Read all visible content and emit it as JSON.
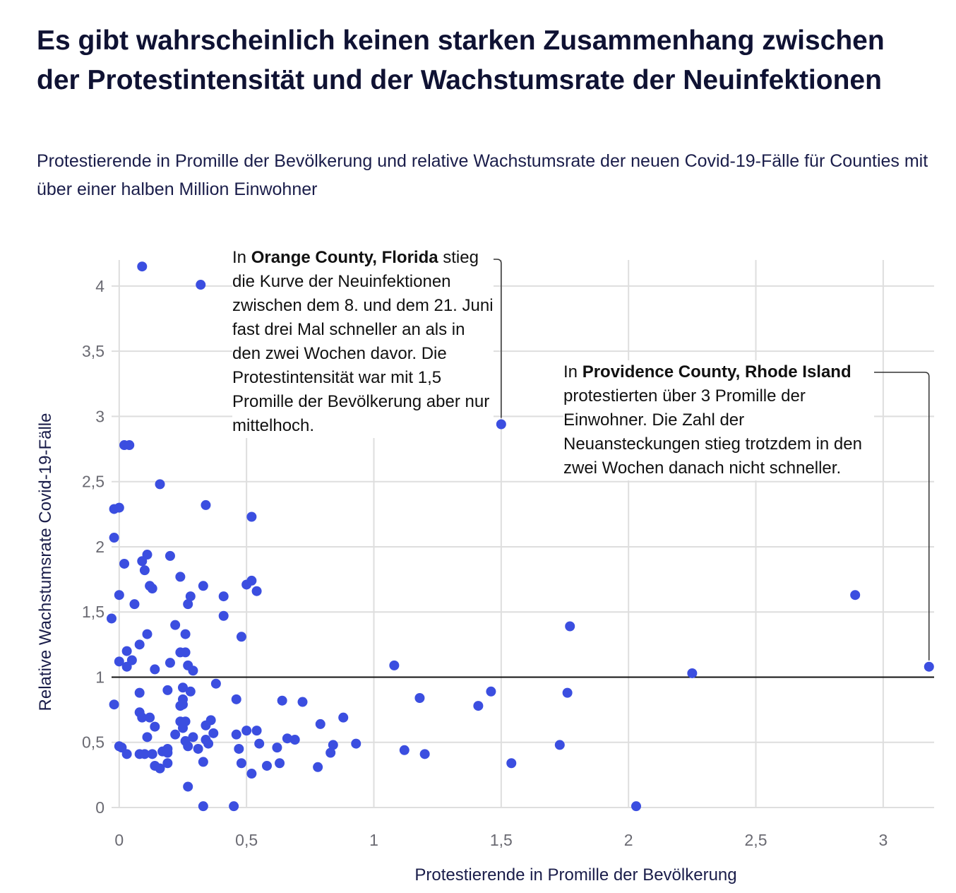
{
  "header": {
    "title": "Es gibt wahrscheinlich keinen starken Zusammenhang zwischen der Protestintensität und der Wachstumsrate der Neuinfektionen",
    "subtitle": "Protestierende in Promille der Bevölkerung und relative Wachstumsrate der neuen Covid-19-Fälle für Counties mit über einer halben Million Einwohner"
  },
  "annotations": {
    "orange": {
      "prefix": "In ",
      "bold": "Orange County, Florida",
      "text": "stieg die Kurve der Neuinfektionen zwischen dem 8. und dem 21. Juni fast drei Mal schneller an als in den zwei Wochen davor. Die Protestintensität war mit 1,5 Promille der Bevölkerung aber nur mittelhoch."
    },
    "providence": {
      "prefix": "In ",
      "bold": "Providence County, Rhode Island",
      "text": "protestierten über 3 Promille der Einwohner. Die Zahl der Neuansteckungen stieg trotzdem in den zwei Wochen danach nicht schneller."
    }
  },
  "colors": {
    "point": "#3b4ee0",
    "grid": "#dedede",
    "reference_line": "#111111",
    "text": "#0f1233"
  },
  "chart_data": {
    "type": "scatter",
    "xlabel": "Protestierende in Promille der Bevölkerung",
    "ylabel": "Relative Wachstumsrate Covid-19-Fälle",
    "xlim": [
      -0.03,
      3.2
    ],
    "ylim": [
      0,
      4.2
    ],
    "x_ticks": [
      0,
      0.5,
      1,
      1.5,
      2,
      2.5,
      3
    ],
    "x_tick_labels": [
      "0",
      "0,5",
      "1",
      "1,5",
      "2",
      "2,5",
      "3"
    ],
    "y_ticks": [
      0,
      0.5,
      1,
      1.5,
      2,
      2.5,
      3,
      3.5,
      4
    ],
    "y_tick_labels": [
      "0",
      "0,5",
      "1",
      "1,5",
      "2",
      "2,5",
      "3",
      "3,5",
      "4"
    ],
    "reference_line_y": 1,
    "grid": true,
    "points": [
      {
        "x": 0.09,
        "y": 4.15
      },
      {
        "x": 0.32,
        "y": 4.01
      },
      {
        "x": 1.5,
        "y": 2.94
      },
      {
        "x": 0.02,
        "y": 2.78
      },
      {
        "x": 0.04,
        "y": 2.78
      },
      {
        "x": 0.16,
        "y": 2.48
      },
      {
        "x": -0.02,
        "y": 2.29
      },
      {
        "x": 0.0,
        "y": 2.3
      },
      {
        "x": 0.34,
        "y": 2.32
      },
      {
        "x": 0.52,
        "y": 2.23
      },
      {
        "x": -0.02,
        "y": 2.07
      },
      {
        "x": 0.11,
        "y": 1.94
      },
      {
        "x": 0.2,
        "y": 1.93
      },
      {
        "x": 0.02,
        "y": 1.87
      },
      {
        "x": 0.09,
        "y": 1.89
      },
      {
        "x": 0.1,
        "y": 1.82
      },
      {
        "x": 0.24,
        "y": 1.77
      },
      {
        "x": 0.52,
        "y": 1.74
      },
      {
        "x": 0.5,
        "y": 1.71
      },
      {
        "x": 0.12,
        "y": 1.7
      },
      {
        "x": 0.13,
        "y": 1.68
      },
      {
        "x": 0.33,
        "y": 1.7
      },
      {
        "x": 0.54,
        "y": 1.66
      },
      {
        "x": 0.0,
        "y": 1.63
      },
      {
        "x": 0.28,
        "y": 1.62
      },
      {
        "x": 0.41,
        "y": 1.62
      },
      {
        "x": 0.06,
        "y": 1.56
      },
      {
        "x": 0.27,
        "y": 1.56
      },
      {
        "x": -0.03,
        "y": 1.45
      },
      {
        "x": 0.41,
        "y": 1.47
      },
      {
        "x": 0.22,
        "y": 1.4
      },
      {
        "x": 1.77,
        "y": 1.39
      },
      {
        "x": 2.89,
        "y": 1.63
      },
      {
        "x": 0.11,
        "y": 1.33
      },
      {
        "x": 0.26,
        "y": 1.33
      },
      {
        "x": 0.48,
        "y": 1.31
      },
      {
        "x": 0.08,
        "y": 1.25
      },
      {
        "x": 0.03,
        "y": 1.2
      },
      {
        "x": 0.24,
        "y": 1.19
      },
      {
        "x": 0.26,
        "y": 1.19
      },
      {
        "x": 0.0,
        "y": 1.12
      },
      {
        "x": 0.05,
        "y": 1.13
      },
      {
        "x": 0.2,
        "y": 1.11
      },
      {
        "x": 0.03,
        "y": 1.08
      },
      {
        "x": 0.14,
        "y": 1.06
      },
      {
        "x": 0.27,
        "y": 1.09
      },
      {
        "x": 0.29,
        "y": 1.05
      },
      {
        "x": 1.08,
        "y": 1.09
      },
      {
        "x": 3.18,
        "y": 1.08
      },
      {
        "x": 2.25,
        "y": 1.03
      },
      {
        "x": 0.38,
        "y": 0.95
      },
      {
        "x": 0.25,
        "y": 0.92
      },
      {
        "x": 0.19,
        "y": 0.9
      },
      {
        "x": 0.28,
        "y": 0.89
      },
      {
        "x": 0.08,
        "y": 0.88
      },
      {
        "x": 1.46,
        "y": 0.89
      },
      {
        "x": 1.76,
        "y": 0.88
      },
      {
        "x": 0.25,
        "y": 0.83
      },
      {
        "x": 0.46,
        "y": 0.83
      },
      {
        "x": 0.64,
        "y": 0.82
      },
      {
        "x": 0.72,
        "y": 0.81
      },
      {
        "x": 1.18,
        "y": 0.84
      },
      {
        "x": 1.41,
        "y": 0.78
      },
      {
        "x": -0.02,
        "y": 0.79
      },
      {
        "x": 0.24,
        "y": 0.78
      },
      {
        "x": 0.25,
        "y": 0.79
      },
      {
        "x": 0.08,
        "y": 0.73
      },
      {
        "x": 0.09,
        "y": 0.69
      },
      {
        "x": 0.12,
        "y": 0.69
      },
      {
        "x": 0.24,
        "y": 0.66
      },
      {
        "x": 0.26,
        "y": 0.66
      },
      {
        "x": 0.36,
        "y": 0.67
      },
      {
        "x": 0.34,
        "y": 0.63
      },
      {
        "x": 0.14,
        "y": 0.62
      },
      {
        "x": 0.25,
        "y": 0.61
      },
      {
        "x": 0.5,
        "y": 0.59
      },
      {
        "x": 0.54,
        "y": 0.59
      },
      {
        "x": 0.88,
        "y": 0.69
      },
      {
        "x": 0.79,
        "y": 0.64
      },
      {
        "x": 0.37,
        "y": 0.57
      },
      {
        "x": 0.22,
        "y": 0.56
      },
      {
        "x": 0.29,
        "y": 0.54
      },
      {
        "x": 0.34,
        "y": 0.52
      },
      {
        "x": 0.11,
        "y": 0.54
      },
      {
        "x": 0.26,
        "y": 0.51
      },
      {
        "x": 0.46,
        "y": 0.56
      },
      {
        "x": 0.55,
        "y": 0.49
      },
      {
        "x": 0.62,
        "y": 0.46
      },
      {
        "x": 0.66,
        "y": 0.53
      },
      {
        "x": 0.69,
        "y": 0.52
      },
      {
        "x": 0.84,
        "y": 0.48
      },
      {
        "x": 0.93,
        "y": 0.49
      },
      {
        "x": 0.0,
        "y": 0.47
      },
      {
        "x": 0.01,
        "y": 0.46
      },
      {
        "x": 0.19,
        "y": 0.45
      },
      {
        "x": 0.27,
        "y": 0.47
      },
      {
        "x": 0.31,
        "y": 0.45
      },
      {
        "x": 0.35,
        "y": 0.49
      },
      {
        "x": 0.47,
        "y": 0.45
      },
      {
        "x": 0.83,
        "y": 0.42
      },
      {
        "x": 1.12,
        "y": 0.44
      },
      {
        "x": 1.2,
        "y": 0.41
      },
      {
        "x": 1.73,
        "y": 0.48
      },
      {
        "x": 0.03,
        "y": 0.41
      },
      {
        "x": 0.08,
        "y": 0.41
      },
      {
        "x": 0.1,
        "y": 0.41
      },
      {
        "x": 0.13,
        "y": 0.41
      },
      {
        "x": 0.17,
        "y": 0.43
      },
      {
        "x": 0.19,
        "y": 0.42
      },
      {
        "x": 0.33,
        "y": 0.35
      },
      {
        "x": 0.48,
        "y": 0.34
      },
      {
        "x": 0.58,
        "y": 0.32
      },
      {
        "x": 0.63,
        "y": 0.34
      },
      {
        "x": 0.78,
        "y": 0.31
      },
      {
        "x": 1.54,
        "y": 0.34
      },
      {
        "x": 0.14,
        "y": 0.32
      },
      {
        "x": 0.16,
        "y": 0.3
      },
      {
        "x": 0.19,
        "y": 0.34
      },
      {
        "x": 0.52,
        "y": 0.26
      },
      {
        "x": 0.27,
        "y": 0.16
      },
      {
        "x": 0.33,
        "y": 0.01
      },
      {
        "x": 0.45,
        "y": 0.01
      },
      {
        "x": 2.03,
        "y": 0.01
      }
    ]
  }
}
